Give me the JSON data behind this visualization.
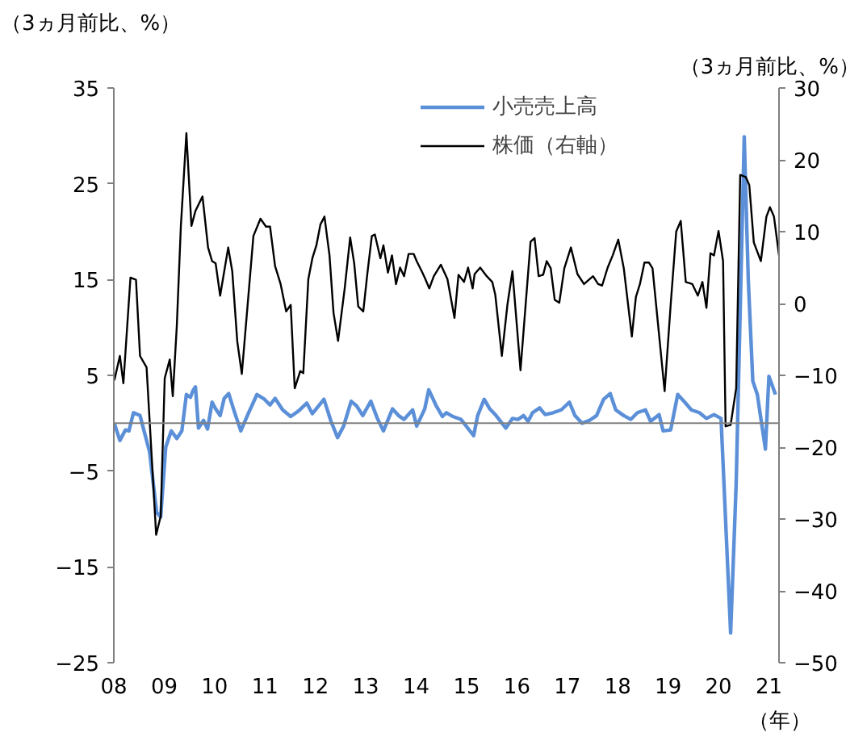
{
  "chart_data": {
    "type": "line",
    "ylabel": "（3ヵ月前比、%）",
    "y2label": "（3ヵ月前比、%）",
    "xlabel": "（年）",
    "xlim": [
      2008,
      2021.2
    ],
    "xticks": [
      {
        "value": 2008,
        "label": "08"
      },
      {
        "value": 2009,
        "label": "09"
      },
      {
        "value": 2010,
        "label": "10"
      },
      {
        "value": 2011,
        "label": "11"
      },
      {
        "value": 2012,
        "label": "12"
      },
      {
        "value": 2013,
        "label": "13"
      },
      {
        "value": 2014,
        "label": "14"
      },
      {
        "value": 2015,
        "label": "15"
      },
      {
        "value": 2016,
        "label": "16"
      },
      {
        "value": 2017,
        "label": "17"
      },
      {
        "value": 2018,
        "label": "18"
      },
      {
        "value": 2019,
        "label": "19"
      },
      {
        "value": 2020,
        "label": "20"
      },
      {
        "value": 2021,
        "label": "21"
      }
    ],
    "ylim": [
      -25,
      35
    ],
    "yticks": [
      -25,
      -15,
      -5,
      5,
      15,
      25,
      35
    ],
    "y2lim": [
      -50,
      30
    ],
    "y2ticks": [
      -50,
      -40,
      -30,
      -20,
      -10,
      0,
      10,
      20,
      30
    ],
    "ref_lines": [
      {
        "axis": "y",
        "value": 0,
        "color": "#808080"
      }
    ],
    "grid": false,
    "legend": "top right",
    "series": [
      {
        "name": "小売売上高",
        "color": "#5b8fd8",
        "x": [
          2008.01,
          2008.12,
          2008.23,
          2008.3,
          2008.39,
          2008.52,
          2008.6,
          2008.71,
          2008.85,
          2008.93,
          2009.03,
          2009.14,
          2009.25,
          2009.35,
          2009.44,
          2009.52,
          2009.57,
          2009.62,
          2009.68,
          2009.78,
          2009.86,
          2009.95,
          2010.02,
          2010.11,
          2010.19,
          2010.28,
          2010.38,
          2010.52,
          2010.65,
          2010.84,
          2010.99,
          2011.1,
          2011.2,
          2011.35,
          2011.51,
          2011.67,
          2011.83,
          2011.94,
          2012.17,
          2012.31,
          2012.44,
          2012.56,
          2012.71,
          2012.82,
          2012.94,
          2013.1,
          2013.23,
          2013.35,
          2013.53,
          2013.65,
          2013.76,
          2013.93,
          2014.01,
          2014.17,
          2014.25,
          2014.39,
          2014.52,
          2014.6,
          2014.73,
          2014.89,
          2015.14,
          2015.22,
          2015.35,
          2015.46,
          2015.57,
          2015.78,
          2015.91,
          2016.02,
          2016.13,
          2016.22,
          2016.31,
          2016.45,
          2016.56,
          2016.72,
          2016.88,
          2017.04,
          2017.15,
          2017.29,
          2017.44,
          2017.58,
          2017.72,
          2017.85,
          2017.96,
          2018.12,
          2018.26,
          2018.39,
          2018.55,
          2018.65,
          2018.82,
          2018.9,
          2019.05,
          2019.19,
          2019.33,
          2019.46,
          2019.62,
          2019.76,
          2019.91,
          2020.05,
          2020.24,
          2020.35,
          2020.51,
          2020.59,
          2020.68,
          2020.77,
          2020.93,
          2021.0,
          2021.13
        ],
        "values": [
          0.0,
          -1.8,
          -0.7,
          -0.8,
          1.1,
          0.8,
          -0.8,
          -3.0,
          -9.3,
          -9.8,
          -2.5,
          -0.8,
          -1.6,
          -0.8,
          3.0,
          2.7,
          3.4,
          3.8,
          -0.5,
          0.3,
          -0.6,
          2.2,
          1.5,
          0.8,
          2.6,
          3.1,
          1.4,
          -0.8,
          0.8,
          3.0,
          2.5,
          1.9,
          2.6,
          1.4,
          0.7,
          1.3,
          2.1,
          1.0,
          2.5,
          0.2,
          -1.5,
          -0.3,
          2.3,
          1.8,
          0.8,
          2.3,
          0.5,
          -0.8,
          1.5,
          0.8,
          0.4,
          1.4,
          -0.3,
          1.5,
          3.5,
          1.9,
          0.7,
          1.1,
          0.7,
          0.4,
          -1.3,
          0.8,
          2.5,
          1.5,
          0.9,
          -0.5,
          0.5,
          0.4,
          0.8,
          0.2,
          1.1,
          1.6,
          0.9,
          1.1,
          1.4,
          2.2,
          0.8,
          0.0,
          0.3,
          0.8,
          2.5,
          3.1,
          1.4,
          0.8,
          0.4,
          1.1,
          1.4,
          0.2,
          0.9,
          -0.8,
          -0.7,
          3.0,
          2.2,
          1.4,
          1.1,
          0.5,
          0.9,
          0.5,
          -21.9,
          -6.3,
          29.9,
          15.0,
          4.4,
          3.0,
          -2.7,
          4.9,
          3.0
        ]
      },
      {
        "name": "株価（右軸）",
        "color": "#000000",
        "axis": "y2",
        "x": [
          2008.01,
          2008.12,
          2008.19,
          2008.33,
          2008.44,
          2008.52,
          2008.65,
          2008.84,
          2008.93,
          2009.01,
          2009.11,
          2009.17,
          2009.25,
          2009.33,
          2009.44,
          2009.54,
          2009.62,
          2009.76,
          2009.87,
          2009.95,
          2010.02,
          2010.11,
          2010.27,
          2010.35,
          2010.45,
          2010.54,
          2010.77,
          2010.91,
          2011.02,
          2011.1,
          2011.2,
          2011.31,
          2011.42,
          2011.51,
          2011.59,
          2011.7,
          2011.76,
          2011.86,
          2011.94,
          2012.02,
          2012.1,
          2012.18,
          2012.28,
          2012.36,
          2012.45,
          2012.58,
          2012.69,
          2012.77,
          2012.85,
          2012.95,
          2013.03,
          2013.12,
          2013.18,
          2013.29,
          2013.35,
          2013.44,
          2013.52,
          2013.6,
          2013.68,
          2013.76,
          2013.85,
          2013.95,
          2014.01,
          2014.11,
          2014.17,
          2014.26,
          2014.35,
          2014.49,
          2014.62,
          2014.76,
          2014.84,
          2014.95,
          2015.03,
          2015.12,
          2015.16,
          2015.27,
          2015.4,
          2015.51,
          2015.57,
          2015.7,
          2015.81,
          2015.91,
          2016.07,
          2016.27,
          2016.35,
          2016.43,
          2016.52,
          2016.59,
          2016.67,
          2016.75,
          2016.84,
          2016.94,
          2017.07,
          2017.2,
          2017.33,
          2017.51,
          2017.61,
          2017.69,
          2017.8,
          2017.9,
          2018.01,
          2018.12,
          2018.28,
          2018.36,
          2018.44,
          2018.53,
          2018.62,
          2018.69,
          2018.93,
          2019.05,
          2019.16,
          2019.25,
          2019.35,
          2019.48,
          2019.59,
          2019.68,
          2019.76,
          2019.84,
          2019.91,
          2020.0,
          2020.09,
          2020.14,
          2020.24,
          2020.35,
          2020.43,
          2020.54,
          2020.61,
          2020.7,
          2020.84,
          2020.95,
          2021.02,
          2021.1,
          2021.2
        ],
        "values": [
          -10.7,
          -7.3,
          -11.1,
          3.6,
          3.3,
          -7.3,
          -8.9,
          -32.2,
          -29.6,
          -10.4,
          -7.8,
          -12.9,
          -3.1,
          10.7,
          23.7,
          10.8,
          12.9,
          14.9,
          7.8,
          5.9,
          5.6,
          1.1,
          7.8,
          4.5,
          -5.3,
          -9.8,
          9.4,
          11.8,
          10.7,
          10.7,
          5.2,
          2.7,
          -1.1,
          -0.2,
          -11.8,
          -9.4,
          -9.7,
          3.4,
          6.3,
          8.1,
          11.0,
          12.1,
          6.7,
          -1.3,
          -5.2,
          2.0,
          9.2,
          5.6,
          -0.4,
          -1.1,
          4.1,
          9.4,
          9.6,
          6.3,
          8.1,
          4.3,
          6.7,
          2.7,
          5.0,
          3.8,
          6.9,
          6.9,
          5.9,
          4.5,
          3.6,
          2.1,
          3.8,
          5.4,
          3.4,
          -2.0,
          4.0,
          3.0,
          5.0,
          2.1,
          4.1,
          5.0,
          3.8,
          3.0,
          1.2,
          -7.3,
          -0.2,
          4.5,
          -9.3,
          8.6,
          9.1,
          3.8,
          4.0,
          5.9,
          4.9,
          0.5,
          0.1,
          4.9,
          7.8,
          4.1,
          2.7,
          3.8,
          2.7,
          2.5,
          5.0,
          6.7,
          8.9,
          4.9,
          -4.6,
          0.9,
          2.7,
          5.7,
          5.7,
          4.9,
          -12.2,
          -0.2,
          10.0,
          11.5,
          3.0,
          2.7,
          1.1,
          3.0,
          -0.6,
          7.0,
          6.7,
          10.1,
          5.9,
          -17.1,
          -16.9,
          -11.8,
          17.9,
          17.6,
          16.5,
          8.5,
          5.9,
          12.1,
          13.4,
          12.1,
          6.7
        ]
      }
    ]
  }
}
